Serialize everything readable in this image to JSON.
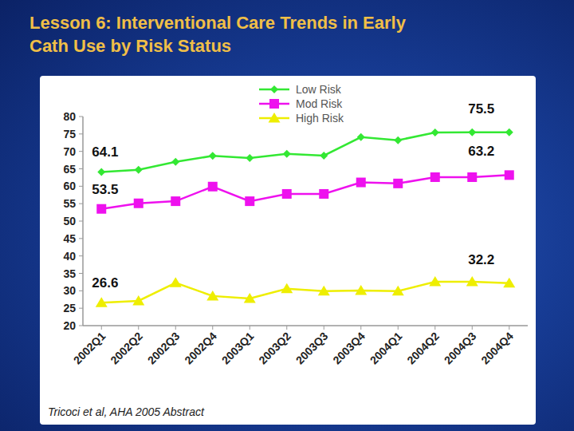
{
  "chart_data": {
    "type": "line",
    "title": "Lesson 6: Interventional Care Trends in Early Cath Use by Risk Status",
    "categories": [
      "2002Q1",
      "2002Q2",
      "2002Q3",
      "2002Q4",
      "2003Q1",
      "2003Q2",
      "2003Q3",
      "2003Q4",
      "2004Q1",
      "2004Q2",
      "2004Q3",
      "2004Q4"
    ],
    "series": [
      {
        "name": "Low Risk",
        "color": "#33e833",
        "marker": "diamond",
        "values": [
          64.1,
          64.7,
          67.0,
          68.7,
          68.1,
          69.3,
          68.8,
          74.1,
          73.2,
          75.4,
          75.5,
          75.5
        ],
        "value_labels": [
          "64.1",
          null,
          null,
          null,
          null,
          null,
          null,
          null,
          null,
          null,
          null,
          "75.5"
        ]
      },
      {
        "name": "Mod Risk",
        "color": "#ee11ee",
        "marker": "square",
        "values": [
          53.5,
          55.1,
          55.7,
          59.9,
          55.7,
          57.8,
          57.8,
          61.1,
          60.8,
          62.6,
          62.6,
          63.2
        ],
        "value_labels": [
          "53.5",
          null,
          null,
          null,
          null,
          null,
          null,
          null,
          null,
          null,
          null,
          "63.2"
        ]
      },
      {
        "name": "High Risk",
        "color": "#eeee00",
        "marker": "triangle",
        "values": [
          26.6,
          27.1,
          32.3,
          28.5,
          27.8,
          30.6,
          29.9,
          30.1,
          29.9,
          32.6,
          32.6,
          32.2
        ],
        "value_labels": [
          "26.6",
          null,
          null,
          null,
          null,
          null,
          null,
          null,
          null,
          null,
          null,
          "32.2"
        ]
      }
    ],
    "ylim": [
      20,
      80
    ],
    "yticks": [
      20,
      25,
      30,
      35,
      40,
      45,
      50,
      55,
      60,
      65,
      70,
      75,
      80
    ],
    "grid": false,
    "legend": "top",
    "annotations": [
      "Tricoci et al, AHA 2005 Abstract"
    ]
  }
}
